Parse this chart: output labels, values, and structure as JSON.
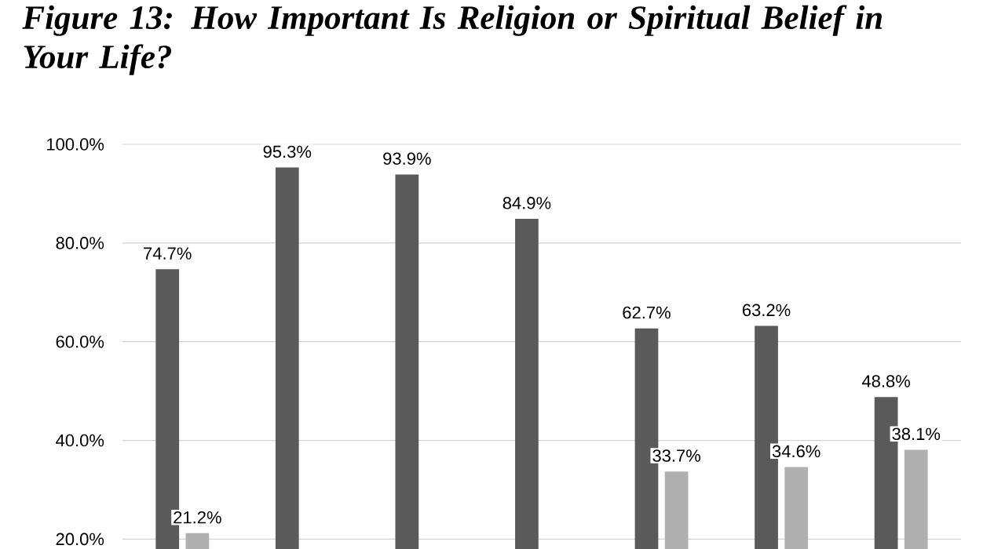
{
  "chart_data": {
    "type": "bar",
    "title": "Figure 13: How Important Is Religion or Spiritual Belief in Your Life?",
    "categories": [
      null,
      null,
      null,
      null,
      null,
      null,
      null
    ],
    "series": [
      {
        "color": "#5a5a5a",
        "values": [
          74.7,
          95.3,
          93.9,
          84.9,
          62.7,
          63.2,
          48.8
        ],
        "value_labels": [
          "74.7%",
          "95.3%",
          "93.9%",
          "84.9%",
          "62.7%",
          "63.2%",
          "48.8%"
        ]
      },
      {
        "color": "#b0b0b0",
        "values": [
          21.2,
          null,
          null,
          null,
          33.7,
          34.6,
          38.1
        ],
        "value_labels": [
          "21.2%",
          null,
          null,
          null,
          "33.7%",
          "34.6%",
          "38.1%"
        ]
      }
    ],
    "ylim": [
      18,
      100
    ],
    "yticks": [
      {
        "value": 20,
        "label": "20.0%"
      },
      {
        "value": 40,
        "label": "40.0%"
      },
      {
        "value": 60,
        "label": "60.0%"
      },
      {
        "value": 80,
        "label": "80.0%"
      },
      {
        "value": 100,
        "label": "100.0%"
      }
    ],
    "grid": "y"
  }
}
